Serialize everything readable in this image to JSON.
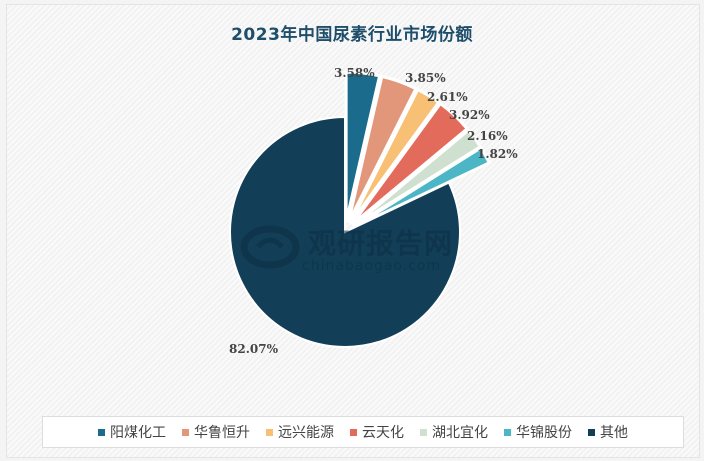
{
  "title": "2023年中国尿素行业市场份额",
  "watermark": {
    "cn": "观研报告网",
    "en": "chinabaogao.com"
  },
  "legend": [
    {
      "label": "阳煤化工",
      "color": "#1b6b8c"
    },
    {
      "label": "华鲁恒升",
      "color": "#e2967a"
    },
    {
      "label": "远兴能源",
      "color": "#f7c074"
    },
    {
      "label": "云天化",
      "color": "#e36b5c"
    },
    {
      "label": "湖北宜化",
      "color": "#cfe0d0"
    },
    {
      "label": "华锦股份",
      "color": "#4db6c6"
    },
    {
      "label": "其他",
      "color": "#123f57"
    }
  ],
  "labels": {
    "l0": "3.58%",
    "l1": "3.85%",
    "l2": "2.61%",
    "l3": "3.92%",
    "l4": "2.16%",
    "l5": "1.82%",
    "l6": "82.07%"
  },
  "chart_data": {
    "type": "pie",
    "title": "2023年中国尿素行业市场份额",
    "categories": [
      "阳煤化工",
      "华鲁恒升",
      "远兴能源",
      "云天化",
      "湖北宜化",
      "华锦股份",
      "其他"
    ],
    "values": [
      3.58,
      3.85,
      2.61,
      3.92,
      2.16,
      1.82,
      82.07
    ],
    "unit": "%",
    "legend_position": "bottom",
    "exploded": [
      "阳煤化工",
      "华鲁恒升",
      "远兴能源",
      "云天化",
      "湖北宜化",
      "华锦股份"
    ]
  }
}
